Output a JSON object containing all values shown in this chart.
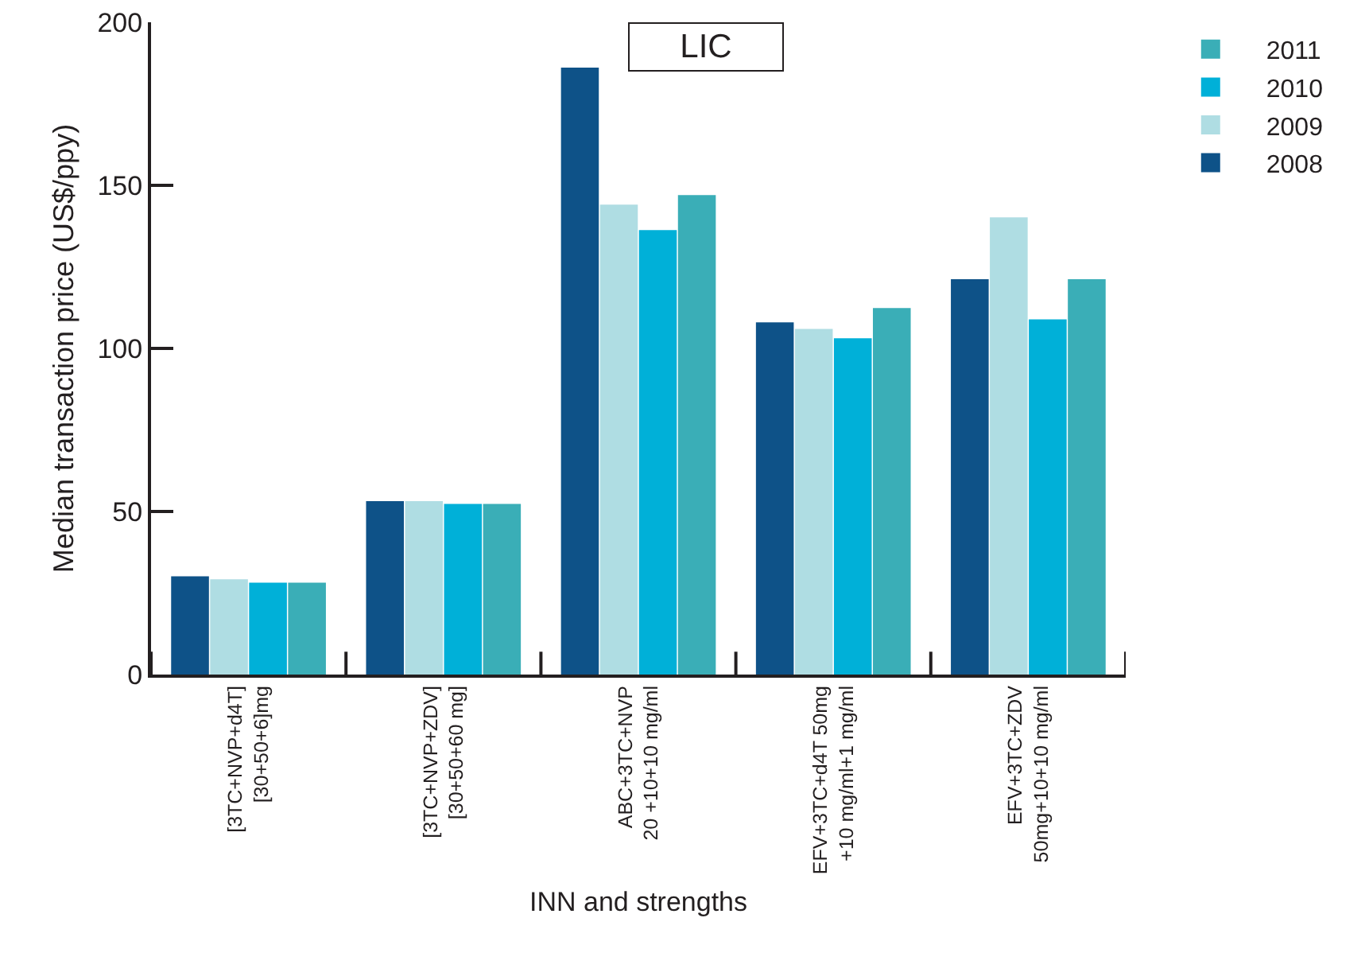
{
  "chart_data": {
    "type": "bar",
    "title": "LIC",
    "xlabel": "INN and strengths",
    "ylabel": "Median transaction price (US$/ppy)",
    "categories": [
      "[3TC+NVP+d4T]\n[30+50+6]mg",
      "[3TC+NVP+ZDV]\n[30+50+60 mg]",
      "ABC+3TC+NVP\n20 +10+10 mg/ml",
      "EFV+3TC+d4T 50mg\n+10 mg/ml+1 mg/ml",
      "EFV+3TC+ZDV\n50mg+10+10 mg/ml"
    ],
    "series": [
      {
        "name": "2008",
        "color": "#0e5288",
        "values": [
          30.1,
          53.2,
          186.1,
          108.0,
          121.2
        ]
      },
      {
        "name": "2009",
        "color": "#afdde3",
        "values": [
          29.2,
          53.2,
          144.1,
          106.0,
          140.2
        ]
      },
      {
        "name": "2010",
        "color": "#00b0d8",
        "values": [
          28.2,
          52.3,
          136.3,
          103.1,
          108.9
        ]
      },
      {
        "name": "2011",
        "color": "#3aaeb7",
        "values": [
          28.2,
          52.3,
          147.0,
          112.4,
          121.2
        ]
      }
    ],
    "ylim": [
      0,
      200
    ],
    "yticks": [
      0,
      50,
      100,
      150,
      200
    ],
    "grid": false,
    "legend": "right"
  }
}
